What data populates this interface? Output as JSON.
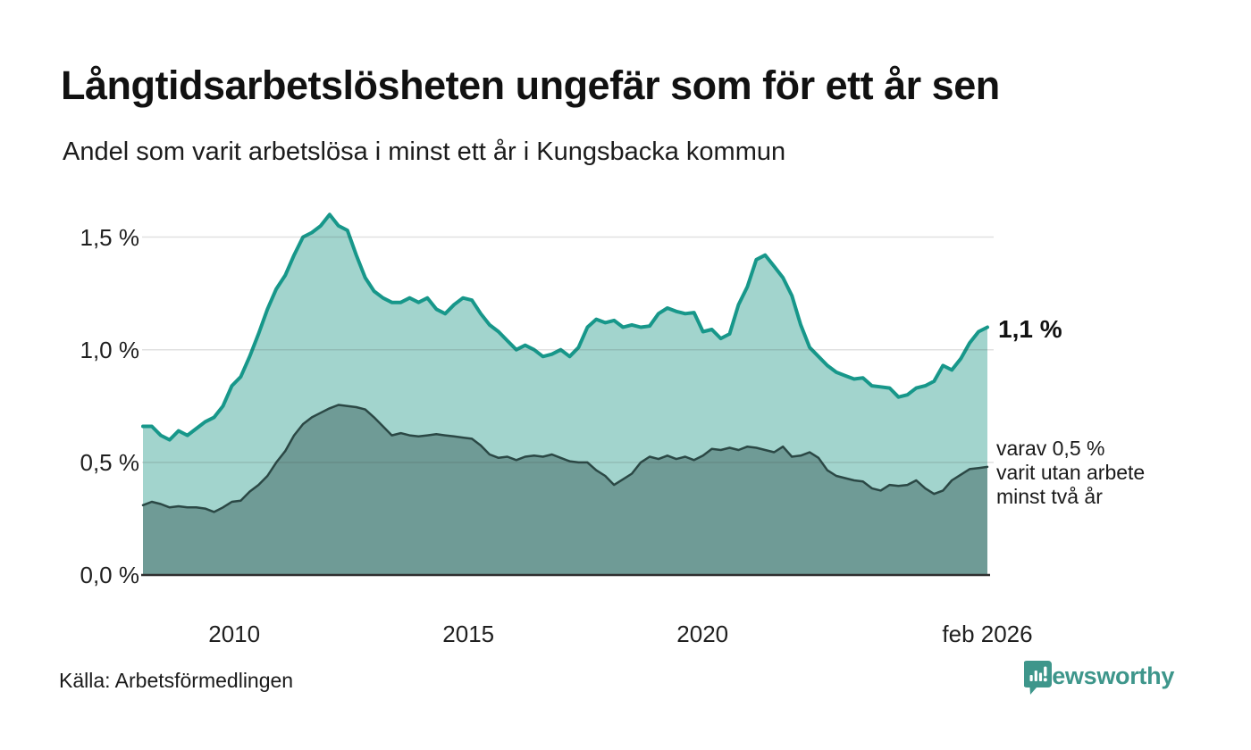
{
  "colors": {
    "accent_teal": "#17978a",
    "area_light": "#a2d4cd",
    "area_dark": "#6f9b96",
    "line_dark": "#2b4845",
    "grid": "rgba(60,60,60,0.16)",
    "axis": "#2f2f2f",
    "text": "#1a1a1a",
    "brand_teal": "#3e968b"
  },
  "chart_data": {
    "type": "area",
    "title": "Långtidsarbetslösheten ungefär som för ett år sen",
    "subtitle": "Andel som varit arbetslösa i minst ett år i Kungsbacka kommun",
    "unit": "%",
    "x_domain": [
      2008.05,
      2026.083
    ],
    "ylim": [
      0,
      1.65
    ],
    "grid": "horizontal",
    "legend": "none",
    "x_ticks": [
      {
        "value": 2010,
        "label": "2010"
      },
      {
        "value": 2015,
        "label": "2015"
      },
      {
        "value": 2020,
        "label": "2020"
      },
      {
        "value": 2026.083,
        "label": "feb 2026"
      }
    ],
    "y_ticks": [
      {
        "value": 0,
        "label": "0,0 %"
      },
      {
        "value": 0.5,
        "label": "0,5 %"
      },
      {
        "value": 1.0,
        "label": "1,0 %"
      },
      {
        "value": 1.5,
        "label": "1,5 %"
      }
    ],
    "series": [
      {
        "name": "Andel arbetslösa minst ett år",
        "end_value": 1.1,
        "line_color": "#17978a",
        "fill_color": "#a2d4cd",
        "line_width": 4,
        "values": [
          0.66,
          0.66,
          0.62,
          0.6,
          0.64,
          0.62,
          0.65,
          0.68,
          0.7,
          0.75,
          0.84,
          0.88,
          0.97,
          1.07,
          1.18,
          1.27,
          1.33,
          1.42,
          1.5,
          1.52,
          1.55,
          1.6,
          1.55,
          1.53,
          1.42,
          1.32,
          1.26,
          1.23,
          1.21,
          1.21,
          1.23,
          1.21,
          1.23,
          1.18,
          1.16,
          1.2,
          1.23,
          1.22,
          1.16,
          1.11,
          1.08,
          1.04,
          1.0,
          1.02,
          1.0,
          0.97,
          0.98,
          1.0,
          0.97,
          1.01,
          1.1,
          1.135,
          1.12,
          1.13,
          1.1,
          1.11,
          1.1,
          1.105,
          1.16,
          1.185,
          1.17,
          1.16,
          1.165,
          1.08,
          1.09,
          1.05,
          1.07,
          1.2,
          1.28,
          1.4,
          1.42,
          1.37,
          1.32,
          1.24,
          1.11,
          1.01,
          0.97,
          0.93,
          0.9,
          0.885,
          0.87,
          0.875,
          0.84,
          0.835,
          0.83,
          0.79,
          0.8,
          0.83,
          0.84,
          0.86,
          0.93,
          0.91,
          0.96,
          1.03,
          1.08,
          1.1
        ]
      },
      {
        "name": "Varav utan arbete minst två år",
        "end_value": 0.48,
        "line_color": "#2b4845",
        "fill_color": "#6f9b96",
        "line_width": 2.5,
        "values": [
          0.31,
          0.325,
          0.315,
          0.3,
          0.305,
          0.3,
          0.3,
          0.295,
          0.28,
          0.3,
          0.325,
          0.33,
          0.37,
          0.4,
          0.44,
          0.5,
          0.55,
          0.62,
          0.67,
          0.7,
          0.72,
          0.74,
          0.755,
          0.75,
          0.745,
          0.735,
          0.7,
          0.66,
          0.62,
          0.63,
          0.62,
          0.615,
          0.62,
          0.625,
          0.62,
          0.615,
          0.61,
          0.605,
          0.575,
          0.535,
          0.52,
          0.525,
          0.51,
          0.525,
          0.53,
          0.525,
          0.535,
          0.52,
          0.505,
          0.5,
          0.5,
          0.465,
          0.44,
          0.4,
          0.425,
          0.45,
          0.5,
          0.525,
          0.515,
          0.53,
          0.515,
          0.525,
          0.51,
          0.53,
          0.56,
          0.555,
          0.565,
          0.555,
          0.57,
          0.565,
          0.555,
          0.545,
          0.57,
          0.525,
          0.53,
          0.545,
          0.52,
          0.465,
          0.44,
          0.43,
          0.42,
          0.415,
          0.385,
          0.375,
          0.4,
          0.395,
          0.4,
          0.42,
          0.385,
          0.36,
          0.375,
          0.42,
          0.445,
          0.47,
          0.475,
          0.48
        ]
      }
    ],
    "annotations": {
      "value_label": "1,1 %",
      "sub_label_line1": "varav 0,5 %",
      "sub_label_line2": "varit utan arbete",
      "sub_label_line3": "minst två år"
    }
  },
  "footer": {
    "source": "Källa: Arbetsförmedlingen",
    "brand_name": "Newsworthy"
  }
}
